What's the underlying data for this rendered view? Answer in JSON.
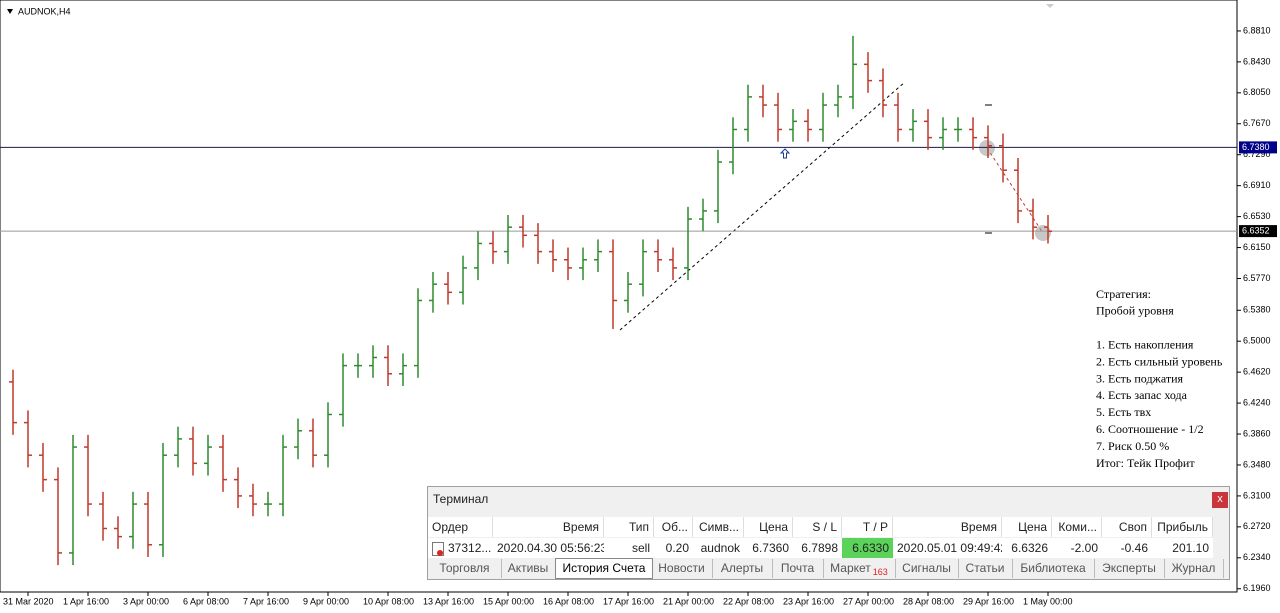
{
  "chart_data": {
    "type": "ohlc",
    "title": "AUDNOK,H4",
    "categories": [
      null,
      "31 Mar 2020",
      null,
      null,
      null,
      "1 Apr 16:00",
      null,
      null,
      null,
      "3 Apr 00:00",
      null,
      null,
      null,
      "6 Apr 08:00",
      null,
      null,
      null,
      "7 Apr 16:00",
      null,
      null,
      null,
      "9 Apr 00:00",
      null,
      null,
      null,
      "10 Apr 08:00",
      null,
      null,
      null,
      "13 Apr 16:00",
      null,
      null,
      null,
      "15 Apr 00:00",
      null,
      null,
      null,
      "16 Apr 08:00",
      null,
      null,
      null,
      "17 Apr 16:00",
      null,
      null,
      null,
      "21 Apr 00:00",
      null,
      null,
      null,
      "22 Apr 08:00",
      null,
      null,
      null,
      "23 Apr 16:00",
      null,
      null,
      null,
      "27 Apr 00:00",
      null,
      null,
      null,
      "28 Apr 08:00",
      null,
      null,
      null,
      "29 Apr 16:00",
      null,
      null,
      null,
      "1 May 00:00"
    ],
    "open": [
      6.45,
      6.4,
      6.36,
      6.33,
      6.24,
      6.37,
      6.3,
      6.27,
      6.26,
      6.3,
      6.25,
      6.36,
      6.38,
      6.35,
      6.37,
      6.33,
      6.31,
      6.3,
      6.3,
      6.37,
      6.39,
      6.36,
      6.41,
      6.47,
      6.47,
      6.48,
      6.46,
      6.47,
      6.55,
      6.57,
      6.56,
      6.59,
      6.62,
      6.61,
      6.64,
      6.63,
      6.61,
      6.6,
      6.59,
      6.6,
      6.61,
      6.55,
      6.57,
      6.61,
      6.6,
      6.59,
      6.65,
      6.66,
      6.72,
      6.76,
      6.8,
      6.79,
      6.76,
      6.77,
      6.76,
      6.79,
      6.8,
      6.84,
      6.82,
      6.79,
      6.76,
      6.77,
      6.75,
      6.76,
      6.76,
      6.75,
      6.74,
      6.71,
      6.66,
      6.64
    ],
    "high": [
      6.465,
      6.415,
      6.375,
      6.345,
      6.385,
      6.385,
      6.315,
      6.285,
      6.315,
      6.315,
      6.375,
      6.395,
      6.395,
      6.385,
      6.385,
      6.345,
      6.325,
      6.315,
      6.385,
      6.405,
      6.405,
      6.425,
      6.485,
      6.485,
      6.495,
      6.495,
      6.485,
      6.565,
      6.585,
      6.585,
      6.605,
      6.635,
      6.635,
      6.655,
      6.655,
      6.645,
      6.625,
      6.615,
      6.615,
      6.625,
      6.625,
      6.585,
      6.625,
      6.625,
      6.615,
      6.665,
      6.675,
      6.735,
      6.775,
      6.815,
      6.815,
      6.805,
      6.785,
      6.785,
      6.805,
      6.815,
      6.875,
      6.855,
      6.835,
      6.805,
      6.785,
      6.785,
      6.775,
      6.775,
      6.775,
      6.765,
      6.755,
      6.725,
      6.675,
      6.655
    ],
    "low": [
      6.385,
      6.345,
      6.315,
      6.225,
      6.225,
      6.285,
      6.255,
      6.245,
      6.245,
      6.235,
      6.235,
      6.345,
      6.335,
      6.335,
      6.315,
      6.295,
      6.285,
      6.285,
      6.285,
      6.355,
      6.345,
      6.345,
      6.395,
      6.455,
      6.455,
      6.445,
      6.445,
      6.455,
      6.535,
      6.545,
      6.545,
      6.575,
      6.595,
      6.595,
      6.615,
      6.595,
      6.585,
      6.575,
      6.575,
      6.585,
      6.515,
      6.535,
      6.555,
      6.585,
      6.575,
      6.575,
      6.635,
      6.645,
      6.705,
      6.745,
      6.775,
      6.745,
      6.745,
      6.745,
      6.745,
      6.775,
      6.785,
      6.805,
      6.775,
      6.745,
      6.745,
      6.735,
      6.735,
      6.745,
      6.735,
      6.725,
      6.695,
      6.645,
      6.625,
      6.62
    ],
    "close": [
      6.4,
      6.36,
      6.33,
      6.24,
      6.37,
      6.3,
      6.27,
      6.26,
      6.3,
      6.25,
      6.36,
      6.38,
      6.35,
      6.37,
      6.33,
      6.31,
      6.3,
      6.3,
      6.37,
      6.39,
      6.36,
      6.41,
      6.47,
      6.47,
      6.48,
      6.46,
      6.47,
      6.55,
      6.57,
      6.56,
      6.59,
      6.62,
      6.61,
      6.64,
      6.63,
      6.61,
      6.6,
      6.59,
      6.6,
      6.61,
      6.55,
      6.57,
      6.61,
      6.6,
      6.59,
      6.65,
      6.66,
      6.72,
      6.76,
      6.8,
      6.79,
      6.76,
      6.77,
      6.76,
      6.79,
      6.8,
      6.84,
      6.82,
      6.79,
      6.76,
      6.77,
      6.75,
      6.76,
      6.76,
      6.75,
      6.74,
      6.71,
      6.66,
      6.64,
      6.635
    ],
    "up_color": "#2e8b2e",
    "down_color": "#c0392b",
    "ylim": [
      6.192,
      6.919
    ],
    "yticks": [
      {
        "value": 6.881,
        "label": "6.8810"
      },
      {
        "value": 6.843,
        "label": "6.8430"
      },
      {
        "value": 6.805,
        "label": "6.8050"
      },
      {
        "value": 6.767,
        "label": "6.7670"
      },
      {
        "value": 6.729,
        "label": "6.7290"
      },
      {
        "value": 6.691,
        "label": "6.6910"
      },
      {
        "value": 6.653,
        "label": "6.6530"
      },
      {
        "value": 6.615,
        "label": "6.6150"
      },
      {
        "value": 6.577,
        "label": "6.5770"
      },
      {
        "value": 6.538,
        "label": "6.5380"
      },
      {
        "value": 6.5,
        "label": "6.5000"
      },
      {
        "value": 6.462,
        "label": "6.4620"
      },
      {
        "value": 6.424,
        "label": "6.4240"
      },
      {
        "value": 6.386,
        "label": "6.3860"
      },
      {
        "value": 6.348,
        "label": "6.3480"
      },
      {
        "value": 6.31,
        "label": "6.3100"
      },
      {
        "value": 6.272,
        "label": "6.2720"
      },
      {
        "value": 6.234,
        "label": "6.2340"
      },
      {
        "value": 6.196,
        "label": "6.1960"
      }
    ],
    "levels": [
      {
        "value": 6.738,
        "label": "6.7380"
      },
      6.6352
    ],
    "notes": [
      "Стратегия:",
      "Пробой уровня",
      null,
      "1. Есть накопления",
      "2. Есть сильный уровень",
      "3. Есть поджатия",
      "4. Есть запас хода",
      "5. Есть твх",
      "6. Соотношение - 1/2",
      "7. Риск 0.50 %",
      "Итог: Тейк Профит"
    ]
  },
  "terminal": {
    "title": "Терминал",
    "close": "x",
    "columns": [
      "Ордер",
      "Время",
      "Тип",
      "Об...",
      "Симв...",
      "Цена",
      "S / L",
      "T / P",
      "Время",
      "Цена",
      "Коми...",
      "Своп",
      "Прибыль"
    ],
    "row": [
      "37312...",
      "2020.04.30 05:56:23",
      "sell",
      "0.20",
      "audnok",
      "6.7360",
      "6.7898",
      "6.6330",
      "2020.05.01 09:49:42",
      "6.6326",
      "-2.00",
      "-0.46",
      "201.10"
    ],
    "tabs": [
      "Торговля",
      "Активы",
      "История Счета",
      "Новости",
      "Алерты",
      "Почта",
      "Маркет",
      "Сигналы",
      "Статьи",
      "Библиотека",
      "Эксперты",
      "Журнал"
    ],
    "tab_badge": "163"
  }
}
